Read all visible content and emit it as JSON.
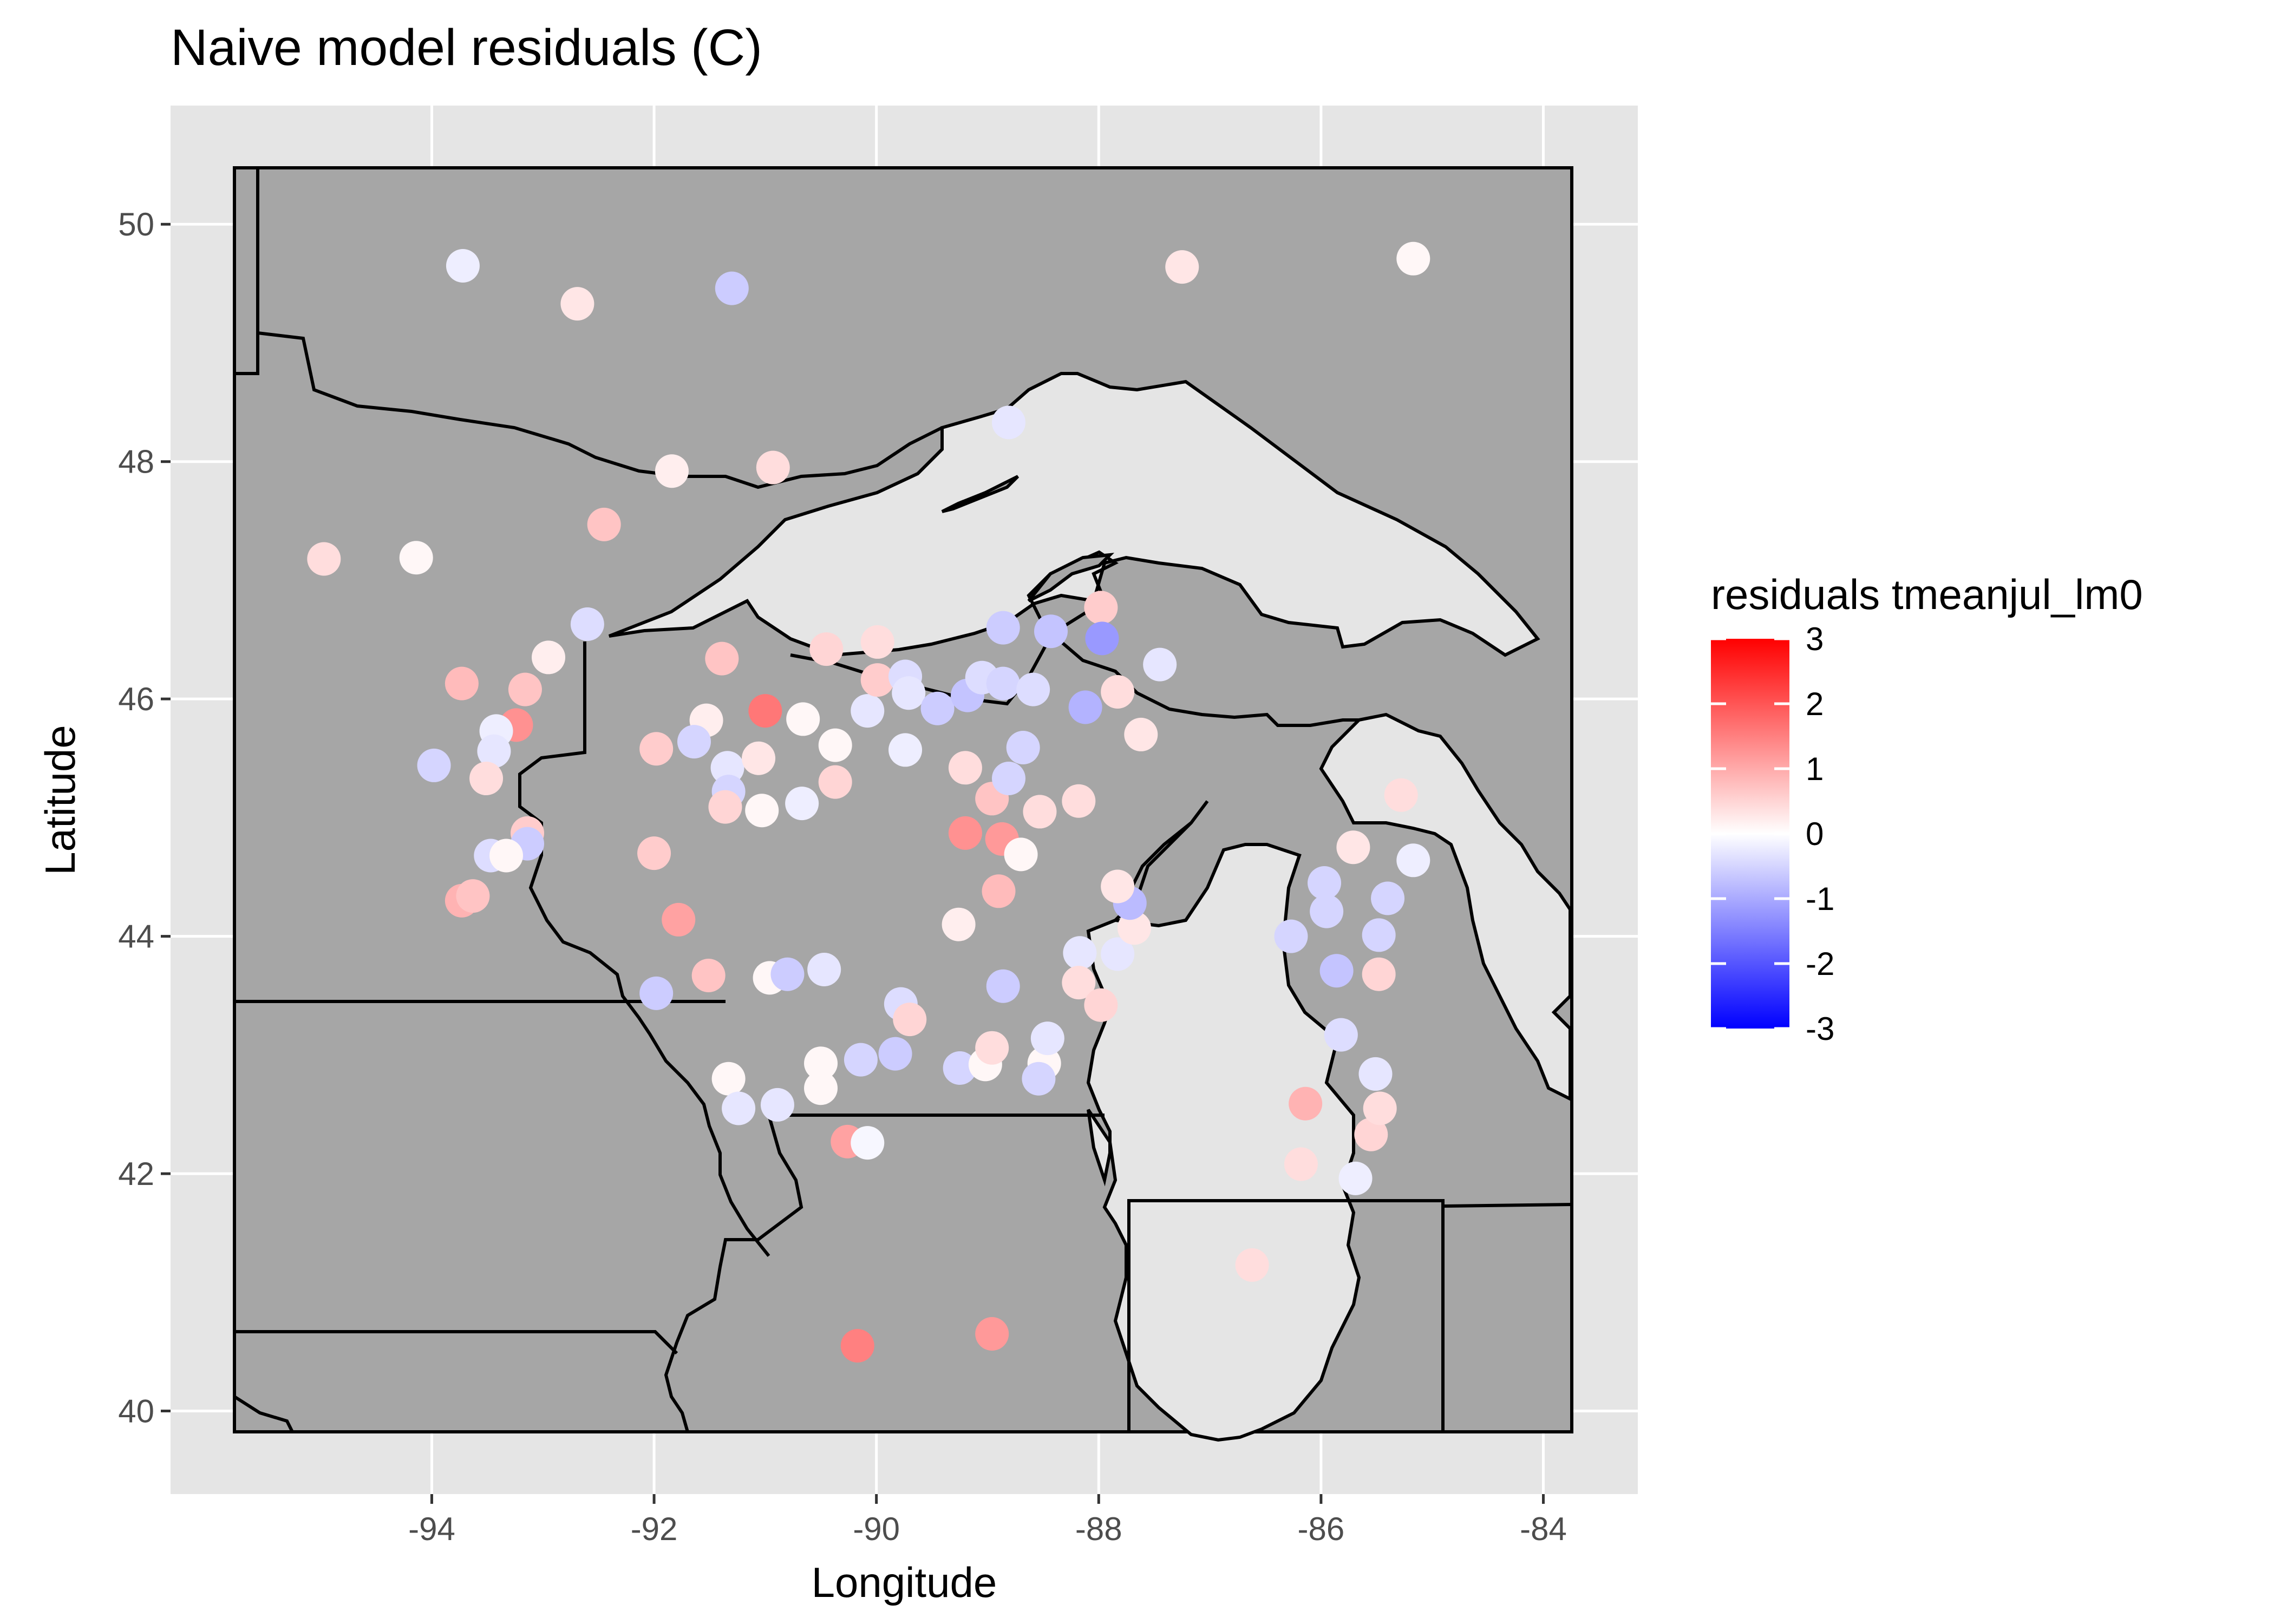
{
  "chart_data": {
    "type": "scatter",
    "title": "Naive model residuals (C)",
    "xlabel": "Longitude",
    "ylabel": "Latitude",
    "xlim": [
      -96.35,
      -83.15
    ],
    "ylim": [
      39.3,
      51.0
    ],
    "xticks": [
      -94,
      -92,
      -90,
      -88,
      -86,
      -84
    ],
    "yticks": [
      40,
      42,
      44,
      46,
      48,
      50
    ],
    "grid": true,
    "legend": {
      "title": "residuals tmeanjul_lm0",
      "position": "right",
      "min": -3,
      "max": 3,
      "ticks": [
        3,
        2,
        1,
        0,
        -1,
        -2,
        -3
      ],
      "low_color": "#0000ff",
      "mid_color": "#ffffff",
      "high_color": "#ff0000"
    },
    "colors": {
      "panel_background": "#e5e5e5",
      "grid": "#ffffff",
      "land": "#a6a6a6",
      "water": "#e5e5e5",
      "border": "#000000"
    },
    "points": [
      {
        "x": -93.72,
        "y": 49.65,
        "r": -0.2
      },
      {
        "x": -92.69,
        "y": 49.33,
        "r": 0.3
      },
      {
        "x": -91.3,
        "y": 49.46,
        "r": -0.6
      },
      {
        "x": -87.25,
        "y": 49.64,
        "r": 0.3
      },
      {
        "x": -85.17,
        "y": 49.71,
        "r": 0.1
      },
      {
        "x": -88.81,
        "y": 48.33,
        "r": -0.3
      },
      {
        "x": -91.84,
        "y": 47.92,
        "r": 0.2
      },
      {
        "x": -90.93,
        "y": 47.95,
        "r": 0.4
      },
      {
        "x": -92.45,
        "y": 47.47,
        "r": 0.7
      },
      {
        "x": -94.97,
        "y": 47.18,
        "r": 0.4
      },
      {
        "x": -94.14,
        "y": 47.19,
        "r": 0.1
      },
      {
        "x": -92.6,
        "y": 46.63,
        "r": -0.4
      },
      {
        "x": -92.95,
        "y": 46.35,
        "r": 0.2
      },
      {
        "x": -93.73,
        "y": 46.13,
        "r": 0.8
      },
      {
        "x": -93.16,
        "y": 46.08,
        "r": 0.7
      },
      {
        "x": -93.24,
        "y": 45.78,
        "r": 1.3
      },
      {
        "x": -93.42,
        "y": 45.73,
        "r": -0.2
      },
      {
        "x": -93.44,
        "y": 45.56,
        "r": -0.3
      },
      {
        "x": -93.51,
        "y": 45.33,
        "r": 0.4
      },
      {
        "x": -93.98,
        "y": 45.44,
        "r": -0.5
      },
      {
        "x": -93.14,
        "y": 44.87,
        "r": 0.6
      },
      {
        "x": -93.14,
        "y": 44.78,
        "r": -0.6
      },
      {
        "x": -93.47,
        "y": 44.68,
        "r": -0.4
      },
      {
        "x": -93.33,
        "y": 44.68,
        "r": 0.1
      },
      {
        "x": -93.73,
        "y": 44.3,
        "r": 0.9
      },
      {
        "x": -93.63,
        "y": 44.34,
        "r": 0.7
      },
      {
        "x": -91.39,
        "y": 46.34,
        "r": 0.7
      },
      {
        "x": -90.45,
        "y": 46.42,
        "r": 0.5
      },
      {
        "x": -89.99,
        "y": 46.48,
        "r": 0.4
      },
      {
        "x": -88.86,
        "y": 46.6,
        "r": -0.6
      },
      {
        "x": -88.43,
        "y": 46.57,
        "r": -0.7
      },
      {
        "x": -87.98,
        "y": 46.77,
        "r": 0.6
      },
      {
        "x": -87.97,
        "y": 46.51,
        "r": -1.2
      },
      {
        "x": -87.45,
        "y": 46.29,
        "r": -0.3
      },
      {
        "x": -91.0,
        "y": 45.9,
        "r": 1.6
      },
      {
        "x": -91.53,
        "y": 45.82,
        "r": 0.2
      },
      {
        "x": -90.66,
        "y": 45.83,
        "r": 0.1
      },
      {
        "x": -90.08,
        "y": 45.9,
        "r": -0.3
      },
      {
        "x": -89.99,
        "y": 46.16,
        "r": 0.6
      },
      {
        "x": -89.74,
        "y": 46.19,
        "r": -0.4
      },
      {
        "x": -89.71,
        "y": 46.05,
        "r": -0.3
      },
      {
        "x": -89.45,
        "y": 45.92,
        "r": -0.6
      },
      {
        "x": -89.18,
        "y": 46.03,
        "r": -0.7
      },
      {
        "x": -89.05,
        "y": 46.18,
        "r": -0.4
      },
      {
        "x": -88.86,
        "y": 46.13,
        "r": -0.5
      },
      {
        "x": -88.59,
        "y": 46.08,
        "r": -0.4
      },
      {
        "x": -88.12,
        "y": 45.93,
        "r": -0.9
      },
      {
        "x": -87.83,
        "y": 46.06,
        "r": 0.4
      },
      {
        "x": -87.62,
        "y": 45.7,
        "r": 0.3
      },
      {
        "x": -91.98,
        "y": 45.58,
        "r": 0.6
      },
      {
        "x": -91.64,
        "y": 45.64,
        "r": -0.5
      },
      {
        "x": -91.34,
        "y": 45.42,
        "r": -0.3
      },
      {
        "x": -91.33,
        "y": 45.22,
        "r": -0.5
      },
      {
        "x": -91.06,
        "y": 45.5,
        "r": 0.3
      },
      {
        "x": -91.36,
        "y": 45.09,
        "r": 0.5
      },
      {
        "x": -91.03,
        "y": 45.06,
        "r": 0.1
      },
      {
        "x": -90.67,
        "y": 45.12,
        "r": -0.2
      },
      {
        "x": -90.37,
        "y": 45.61,
        "r": 0.1
      },
      {
        "x": -90.37,
        "y": 45.3,
        "r": 0.5
      },
      {
        "x": -89.74,
        "y": 45.57,
        "r": -0.2
      },
      {
        "x": -89.2,
        "y": 45.42,
        "r": 0.4
      },
      {
        "x": -88.96,
        "y": 45.16,
        "r": 0.7
      },
      {
        "x": -88.81,
        "y": 45.33,
        "r": -0.5
      },
      {
        "x": -88.68,
        "y": 45.59,
        "r": -0.5
      },
      {
        "x": -88.53,
        "y": 45.05,
        "r": 0.4
      },
      {
        "x": -88.18,
        "y": 45.14,
        "r": 0.4
      },
      {
        "x": -89.2,
        "y": 44.87,
        "r": 1.3
      },
      {
        "x": -88.87,
        "y": 44.82,
        "r": 1.2
      },
      {
        "x": -88.7,
        "y": 44.69,
        "r": 0.1
      },
      {
        "x": -88.9,
        "y": 44.38,
        "r": 0.8
      },
      {
        "x": -89.26,
        "y": 44.1,
        "r": 0.2
      },
      {
        "x": -92.0,
        "y": 44.7,
        "r": 0.6
      },
      {
        "x": -91.78,
        "y": 44.14,
        "r": 1.1
      },
      {
        "x": -91.51,
        "y": 43.67,
        "r": 0.7
      },
      {
        "x": -91.98,
        "y": 43.52,
        "r": -0.6
      },
      {
        "x": -90.96,
        "y": 43.65,
        "r": 0.1
      },
      {
        "x": -90.8,
        "y": 43.68,
        "r": -0.6
      },
      {
        "x": -90.47,
        "y": 43.72,
        "r": -0.3
      },
      {
        "x": -89.78,
        "y": 43.43,
        "r": -0.4
      },
      {
        "x": -89.7,
        "y": 43.3,
        "r": 0.5
      },
      {
        "x": -88.86,
        "y": 43.58,
        "r": -0.6
      },
      {
        "x": -88.17,
        "y": 43.86,
        "r": -0.3
      },
      {
        "x": -88.18,
        "y": 43.61,
        "r": 0.4
      },
      {
        "x": -87.98,
        "y": 43.42,
        "r": 0.5
      },
      {
        "x": -87.83,
        "y": 43.85,
        "r": -0.3
      },
      {
        "x": -87.68,
        "y": 44.07,
        "r": 0.3
      },
      {
        "x": -87.72,
        "y": 44.28,
        "r": -0.8
      },
      {
        "x": -87.83,
        "y": 44.42,
        "r": 0.3
      },
      {
        "x": -90.5,
        "y": 42.93,
        "r": 0.1
      },
      {
        "x": -90.5,
        "y": 42.72,
        "r": 0.1
      },
      {
        "x": -90.14,
        "y": 42.96,
        "r": -0.5
      },
      {
        "x": -89.83,
        "y": 43.01,
        "r": -0.6
      },
      {
        "x": -89.25,
        "y": 42.89,
        "r": -0.5
      },
      {
        "x": -89.02,
        "y": 42.92,
        "r": 0.1
      },
      {
        "x": -88.96,
        "y": 43.06,
        "r": 0.4
      },
      {
        "x": -88.49,
        "y": 42.93,
        "r": 0.1
      },
      {
        "x": -88.46,
        "y": 43.14,
        "r": -0.3
      },
      {
        "x": -88.54,
        "y": 42.8,
        "r": -0.5
      },
      {
        "x": -91.33,
        "y": 42.8,
        "r": 0.1
      },
      {
        "x": -91.24,
        "y": 42.55,
        "r": -0.3
      },
      {
        "x": -90.89,
        "y": 42.58,
        "r": -0.3
      },
      {
        "x": -90.26,
        "y": 42.27,
        "r": 1.1
      },
      {
        "x": -90.08,
        "y": 42.26,
        "r": -0.1
      },
      {
        "x": -90.17,
        "y": 40.55,
        "r": 1.5
      },
      {
        "x": -88.96,
        "y": 40.65,
        "r": 1.2
      },
      {
        "x": -86.62,
        "y": 41.23,
        "r": 0.4
      },
      {
        "x": -86.14,
        "y": 42.59,
        "r": 0.9
      },
      {
        "x": -86.18,
        "y": 42.08,
        "r": 0.4
      },
      {
        "x": -85.69,
        "y": 41.96,
        "r": -0.2
      },
      {
        "x": -85.55,
        "y": 42.33,
        "r": 0.5
      },
      {
        "x": -85.47,
        "y": 42.55,
        "r": 0.4
      },
      {
        "x": -85.51,
        "y": 42.84,
        "r": -0.3
      },
      {
        "x": -85.82,
        "y": 43.17,
        "r": -0.4
      },
      {
        "x": -85.86,
        "y": 43.71,
        "r": -0.7
      },
      {
        "x": -85.48,
        "y": 43.68,
        "r": 0.5
      },
      {
        "x": -85.48,
        "y": 44.01,
        "r": -0.5
      },
      {
        "x": -85.4,
        "y": 44.32,
        "r": -0.5
      },
      {
        "x": -85.17,
        "y": 44.64,
        "r": -0.2
      },
      {
        "x": -85.97,
        "y": 44.45,
        "r": -0.5
      },
      {
        "x": -85.95,
        "y": 44.21,
        "r": -0.5
      },
      {
        "x": -86.27,
        "y": 44.0,
        "r": -0.5
      },
      {
        "x": -85.71,
        "y": 44.75,
        "r": 0.3
      },
      {
        "x": -85.28,
        "y": 45.19,
        "r": 0.4
      }
    ]
  }
}
